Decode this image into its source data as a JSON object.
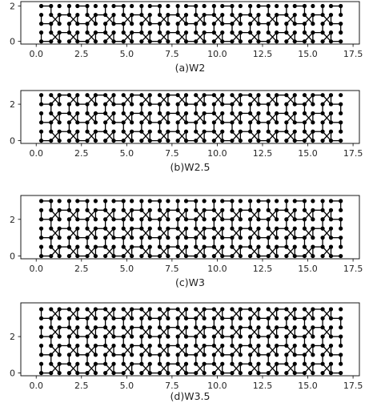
{
  "chart_data": [
    {
      "type": "scatter",
      "subtype": "graphene-nanoribbon-lattice",
      "caption": "(a)W2",
      "width_rows": 2,
      "x_ticks": [
        "0.0",
        "2.5",
        "5.0",
        "7.5",
        "10.0",
        "12.5",
        "15.0",
        "17.5"
      ],
      "y_ticks": [
        "0",
        "2"
      ],
      "xlim": [
        -0.85,
        17.85
      ],
      "ylim": [
        -0.15,
        2.25
      ],
      "series": [
        {
          "marker": "o",
          "color": "#000000",
          "edges": "C-C bonds"
        }
      ]
    },
    {
      "type": "scatter",
      "subtype": "graphene-nanoribbon-lattice",
      "caption": "(b)W2.5",
      "width_rows": 2.5,
      "x_ticks": [
        "0.0",
        "2.5",
        "5.0",
        "7.5",
        "10.0",
        "12.5",
        "15.0",
        "17.5"
      ],
      "y_ticks": [
        "0",
        "2"
      ],
      "xlim": [
        -0.85,
        17.85
      ],
      "ylim": [
        -0.15,
        2.75
      ],
      "series": [
        {
          "marker": "o",
          "color": "#000000",
          "edges": "C-C bonds"
        }
      ]
    },
    {
      "type": "scatter",
      "subtype": "graphene-nanoribbon-lattice",
      "caption": "(c)W3",
      "width_rows": 3,
      "x_ticks": [
        "0.0",
        "2.5",
        "5.0",
        "7.5",
        "10.0",
        "12.5",
        "15.0",
        "17.5"
      ],
      "y_ticks": [
        "0",
        "2"
      ],
      "xlim": [
        -0.85,
        17.85
      ],
      "ylim": [
        -0.15,
        3.3
      ],
      "series": [
        {
          "marker": "o",
          "color": "#000000",
          "edges": "C-C bonds"
        }
      ]
    },
    {
      "type": "scatter",
      "subtype": "graphene-nanoribbon-lattice",
      "caption": "(d)W3.5",
      "width_rows": 3.5,
      "x_ticks": [
        "0.0",
        "2.5",
        "5.0",
        "7.5",
        "10.0",
        "12.5",
        "15.0",
        "17.5"
      ],
      "y_ticks": [
        "0",
        "2"
      ],
      "xlim": [
        -0.85,
        17.85
      ],
      "ylim": [
        -0.15,
        3.85
      ],
      "series": [
        {
          "marker": "o",
          "color": "#000000",
          "edges": "C-C bonds"
        }
      ]
    }
  ]
}
